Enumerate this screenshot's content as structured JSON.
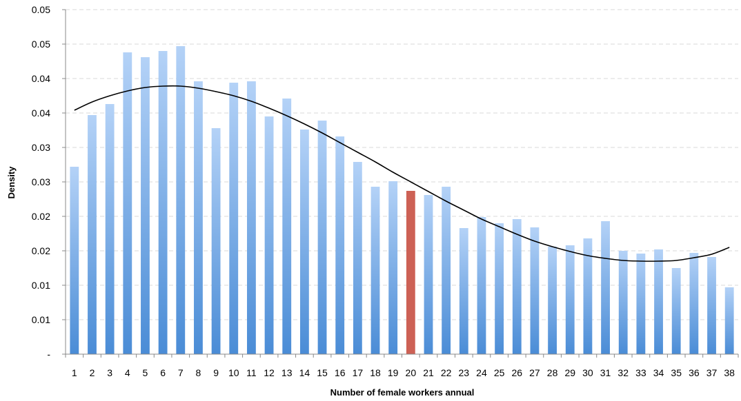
{
  "chart_data": {
    "type": "bar",
    "xlabel": "Number of female workers annual",
    "ylabel": "Density",
    "y_tick_labels": [
      "-",
      "0.01",
      "0.01",
      "0.02",
      "0.02",
      "0.03",
      "0.03",
      "0.04",
      "0.04",
      "0.05",
      "0.05"
    ],
    "ylim": [
      0,
      0.05
    ],
    "grid": true,
    "categories": [
      "1",
      "2",
      "3",
      "4",
      "5",
      "6",
      "7",
      "8",
      "9",
      "10",
      "11",
      "12",
      "13",
      "14",
      "15",
      "16",
      "17",
      "18",
      "19",
      "20",
      "21",
      "22",
      "23",
      "24",
      "25",
      "26",
      "27",
      "28",
      "29",
      "30",
      "31",
      "32",
      "33",
      "34",
      "35",
      "36",
      "37",
      "38"
    ],
    "values": [
      0.0272,
      0.0347,
      0.0363,
      0.0438,
      0.0431,
      0.044,
      0.0447,
      0.0396,
      0.0328,
      0.0394,
      0.0396,
      0.0345,
      0.0371,
      0.0326,
      0.0339,
      0.0316,
      0.0279,
      0.0243,
      0.0251,
      0.0237,
      0.0231,
      0.0243,
      0.0183,
      0.0199,
      0.019,
      0.0196,
      0.0184,
      0.0156,
      0.0158,
      0.0168,
      0.0193,
      0.015,
      0.0146,
      0.0152,
      0.0125,
      0.0147,
      0.0141,
      0.0097
    ],
    "highlight_category": "20",
    "bar_color_top": "#b4d2f7",
    "bar_color_bottom": "#4a8cd6",
    "highlight_color": "#cd6155",
    "trend_line": {
      "color": "#000000",
      "values": [
        0.0354,
        0.0366,
        0.0375,
        0.0382,
        0.0387,
        0.0389,
        0.0389,
        0.0386,
        0.0381,
        0.0375,
        0.0367,
        0.0357,
        0.0346,
        0.0334,
        0.0321,
        0.0307,
        0.0293,
        0.0279,
        0.0264,
        0.025,
        0.0236,
        0.0222,
        0.0209,
        0.0196,
        0.0185,
        0.0174,
        0.0164,
        0.0156,
        0.0149,
        0.0143,
        0.0139,
        0.0136,
        0.0135,
        0.0135,
        0.0136,
        0.014,
        0.0145,
        0.0155
      ]
    }
  }
}
